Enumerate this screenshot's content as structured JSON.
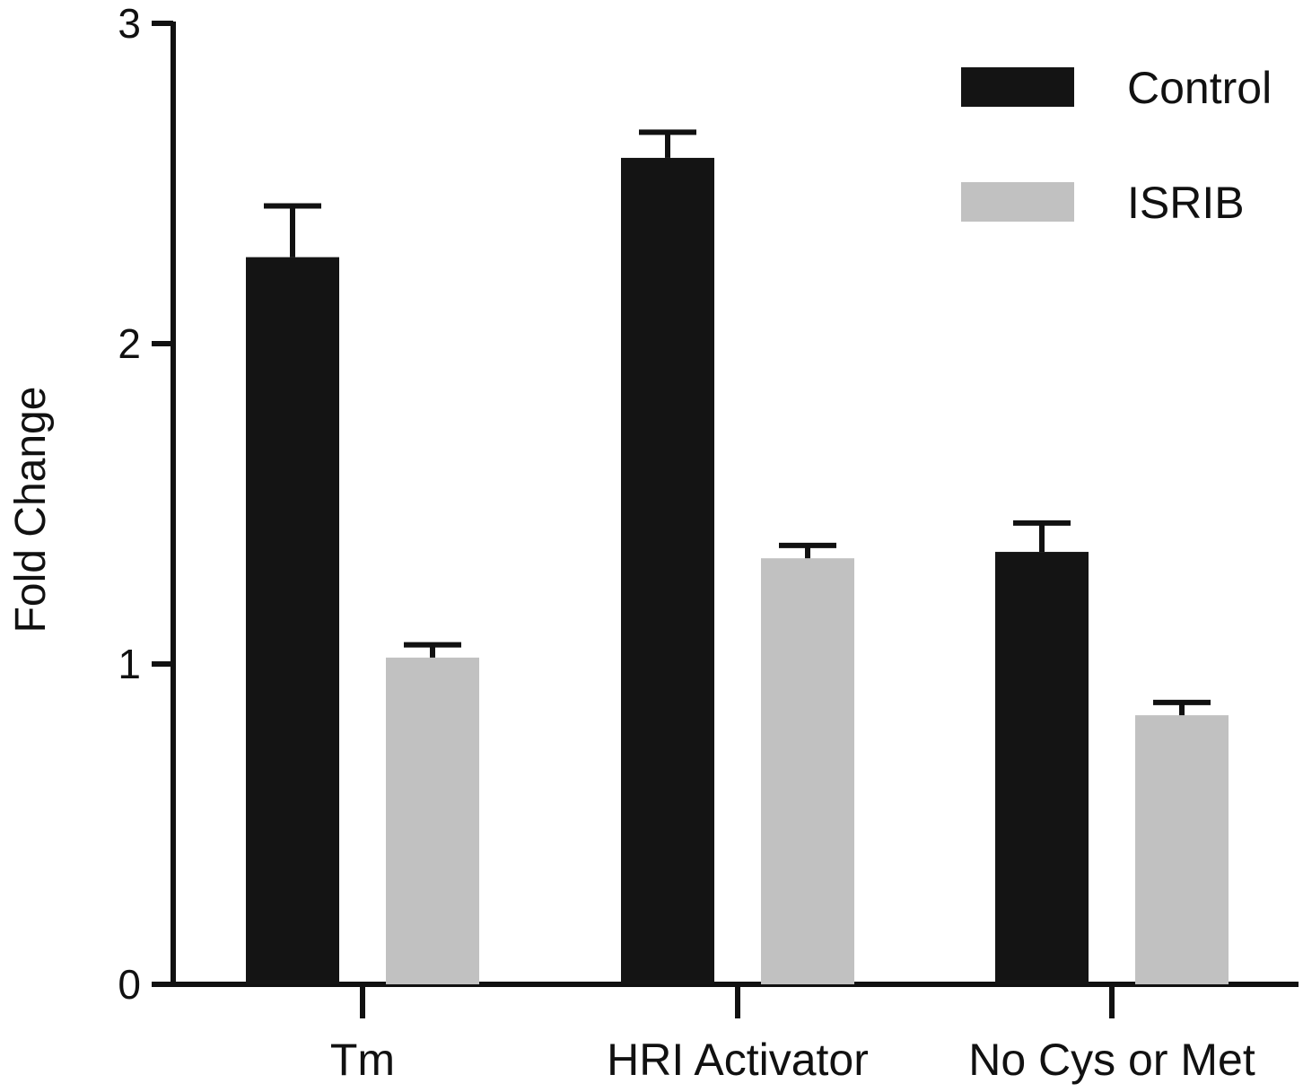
{
  "chart_data": {
    "type": "bar",
    "title": "",
    "xlabel": "",
    "ylabel": "Fold Change",
    "ylim": [
      0,
      3
    ],
    "yticks": [
      "0",
      "1",
      "2",
      "3"
    ],
    "categories": [
      "Tm",
      "HRI Activator",
      "No Cys or Met"
    ],
    "series": [
      {
        "name": "Control",
        "color": "#141414",
        "values": [
          2.27,
          2.58,
          1.35
        ],
        "errors": [
          0.16,
          0.08,
          0.09
        ]
      },
      {
        "name": "ISRIB",
        "color": "#c1c1c1",
        "values": [
          1.02,
          1.33,
          0.84
        ],
        "errors": [
          0.04,
          0.04,
          0.04
        ]
      }
    ],
    "legend_position": "top-right",
    "grid": false
  }
}
